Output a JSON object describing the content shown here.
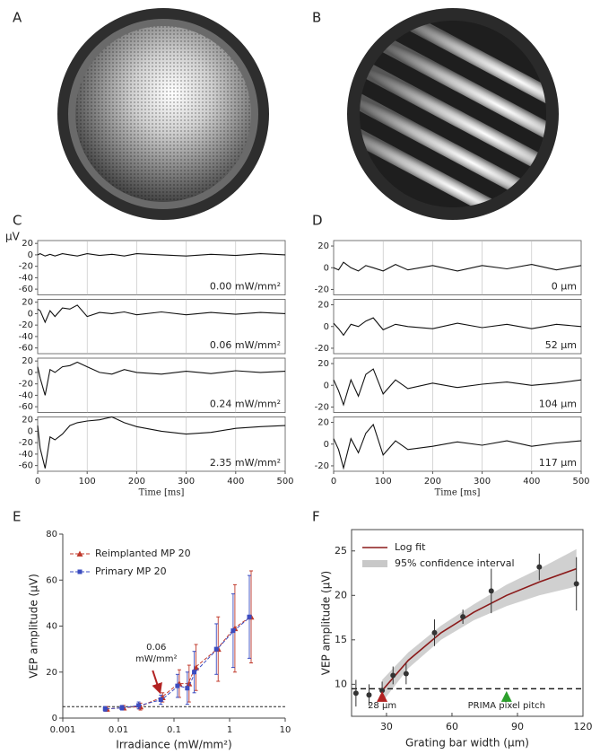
{
  "images": [
    {
      "panel": "A"
    },
    {
      "panel": "B"
    }
  ],
  "chart_data": [
    {
      "type": "stacked_line",
      "panel": "C",
      "xlabel": "Time [ms]",
      "ylabel": "µV",
      "grid": true,
      "xlim": [
        0,
        500
      ],
      "xticks": [
        0,
        100,
        200,
        300,
        400,
        500
      ],
      "ylim": [
        -70,
        25
      ],
      "yticks": [
        20,
        0,
        -20,
        -40,
        -60
      ],
      "color": "#111111",
      "x": [
        0,
        5,
        15,
        25,
        35,
        50,
        65,
        80,
        100,
        125,
        150,
        175,
        200,
        250,
        300,
        350,
        400,
        450,
        500
      ],
      "subplots": [
        {
          "label": "0.00 mW/mm²",
          "values": [
            0,
            2,
            -2,
            1,
            -2,
            2,
            0,
            -2,
            2,
            -1,
            1,
            -2,
            2,
            0,
            -2,
            1,
            -1,
            2,
            0
          ]
        },
        {
          "label": "0.06 mW/mm²",
          "values": [
            8,
            5,
            -15,
            5,
            -5,
            10,
            8,
            15,
            -5,
            2,
            0,
            3,
            -2,
            3,
            -2,
            2,
            -1,
            2,
            0
          ]
        },
        {
          "label": "0.24 mW/mm²",
          "values": [
            10,
            -10,
            -40,
            5,
            0,
            10,
            12,
            18,
            10,
            0,
            -3,
            5,
            0,
            -3,
            2,
            -2,
            3,
            0,
            2
          ]
        },
        {
          "label": "2.35 mW/mm²",
          "values": [
            10,
            -30,
            -65,
            -10,
            -15,
            -5,
            10,
            15,
            18,
            20,
            25,
            15,
            8,
            0,
            -5,
            -2,
            5,
            8,
            10
          ]
        }
      ]
    },
    {
      "type": "stacked_line",
      "panel": "D",
      "xlabel": "Time [ms]",
      "grid": true,
      "xlim": [
        0,
        500
      ],
      "xticks": [
        0,
        100,
        200,
        300,
        400,
        500
      ],
      "ylim": [
        -25,
        25
      ],
      "yticks": [
        20,
        0,
        -20
      ],
      "color": "#111111",
      "x": [
        0,
        10,
        20,
        35,
        50,
        65,
        80,
        100,
        125,
        150,
        200,
        250,
        300,
        350,
        400,
        450,
        500
      ],
      "subplots": [
        {
          "label": "0 µm",
          "values": [
            0,
            -2,
            5,
            0,
            -3,
            2,
            0,
            -3,
            3,
            -2,
            2,
            -3,
            2,
            -1,
            3,
            -2,
            2
          ]
        },
        {
          "label": "52 µm",
          "values": [
            3,
            -2,
            -8,
            2,
            0,
            5,
            8,
            -3,
            2,
            0,
            -2,
            3,
            -1,
            2,
            -2,
            2,
            0
          ]
        },
        {
          "label": "104 µm",
          "values": [
            5,
            -5,
            -18,
            5,
            -10,
            10,
            15,
            -8,
            5,
            -3,
            2,
            -2,
            1,
            3,
            0,
            2,
            5
          ]
        },
        {
          "label": "117 µm",
          "values": [
            5,
            -5,
            -22,
            5,
            -8,
            10,
            18,
            -10,
            3,
            -5,
            -2,
            2,
            -1,
            3,
            -2,
            1,
            3
          ]
        }
      ]
    },
    {
      "type": "line",
      "panel": "E",
      "xlabel": "Irradiance (mW/mm²)",
      "ylabel": "VEP amplitude (µV)",
      "xlog": true,
      "xlim": [
        0.001,
        10
      ],
      "xticks": [
        0.001,
        0.01,
        0.1,
        1,
        10
      ],
      "ylim": [
        0,
        80
      ],
      "yticks": [
        0,
        20,
        40,
        60,
        80
      ],
      "threshold": 5,
      "x": [
        0.006,
        0.012,
        0.024,
        0.06,
        0.12,
        0.18,
        0.24,
        0.6,
        1.2,
        2.35
      ],
      "series": [
        {
          "name": "Reimplanted MP 20",
          "color": "#c0392b",
          "marker": "triangle",
          "values": [
            4,
            4.5,
            5,
            9,
            15,
            15,
            22,
            30,
            39,
            44
          ],
          "errors": [
            1,
            1,
            1.5,
            2,
            6,
            8,
            10,
            14,
            19,
            20
          ]
        },
        {
          "name": "Primary MP 20",
          "color": "#3b4cc0",
          "marker": "square",
          "values": [
            4,
            4.5,
            5.5,
            8,
            14,
            13,
            20,
            30,
            38,
            44
          ],
          "errors": [
            1,
            1,
            1.5,
            2,
            5,
            7,
            9,
            11,
            16,
            18
          ]
        }
      ],
      "annotation": {
        "lines": [
          "0.06",
          "mW/mm²"
        ],
        "x": 0.06,
        "color": "#b22222"
      }
    },
    {
      "type": "scatter",
      "panel": "F",
      "xlabel": "Grating bar width (µm)",
      "ylabel": "VEP amplitude (µV)",
      "xlim": [
        14,
        120
      ],
      "xticks": [
        30,
        60,
        90,
        120
      ],
      "ylim": [
        6.4,
        27.4
      ],
      "yticks": [
        10,
        15,
        20,
        25
      ],
      "threshold": 9.5,
      "color": "#333333",
      "x": [
        16,
        22,
        28,
        33,
        39,
        52,
        65,
        78,
        100,
        117
      ],
      "values": [
        9,
        8.8,
        9.3,
        11,
        11.2,
        15.8,
        17.6,
        20.5,
        23.2,
        21.3
      ],
      "errors": [
        1.5,
        1.2,
        1,
        1,
        1.2,
        1.5,
        0.8,
        2.5,
        1.5,
        3
      ],
      "fit": {
        "name": "Log fit",
        "color": "#8b1a1a",
        "x": [
          28,
          40,
          55,
          70,
          85,
          100,
          117
        ],
        "values": [
          9.3,
          12.7,
          15.8,
          18.1,
          20.0,
          21.5,
          23.0
        ]
      },
      "band": {
        "name": "95% confidence interval",
        "color": "#c8c8c8",
        "lower": [
          8,
          11.8,
          15,
          17.2,
          18.8,
          20,
          21
        ],
        "upper": [
          10.5,
          13.6,
          16.6,
          19,
          21.2,
          23,
          25.2
        ]
      },
      "annotations": [
        {
          "text": "28 µm",
          "x": 28,
          "color": "#b22222"
        },
        {
          "text": "PRIMA pixel pitch",
          "x": 85,
          "color": "#2ca02c"
        }
      ]
    }
  ]
}
